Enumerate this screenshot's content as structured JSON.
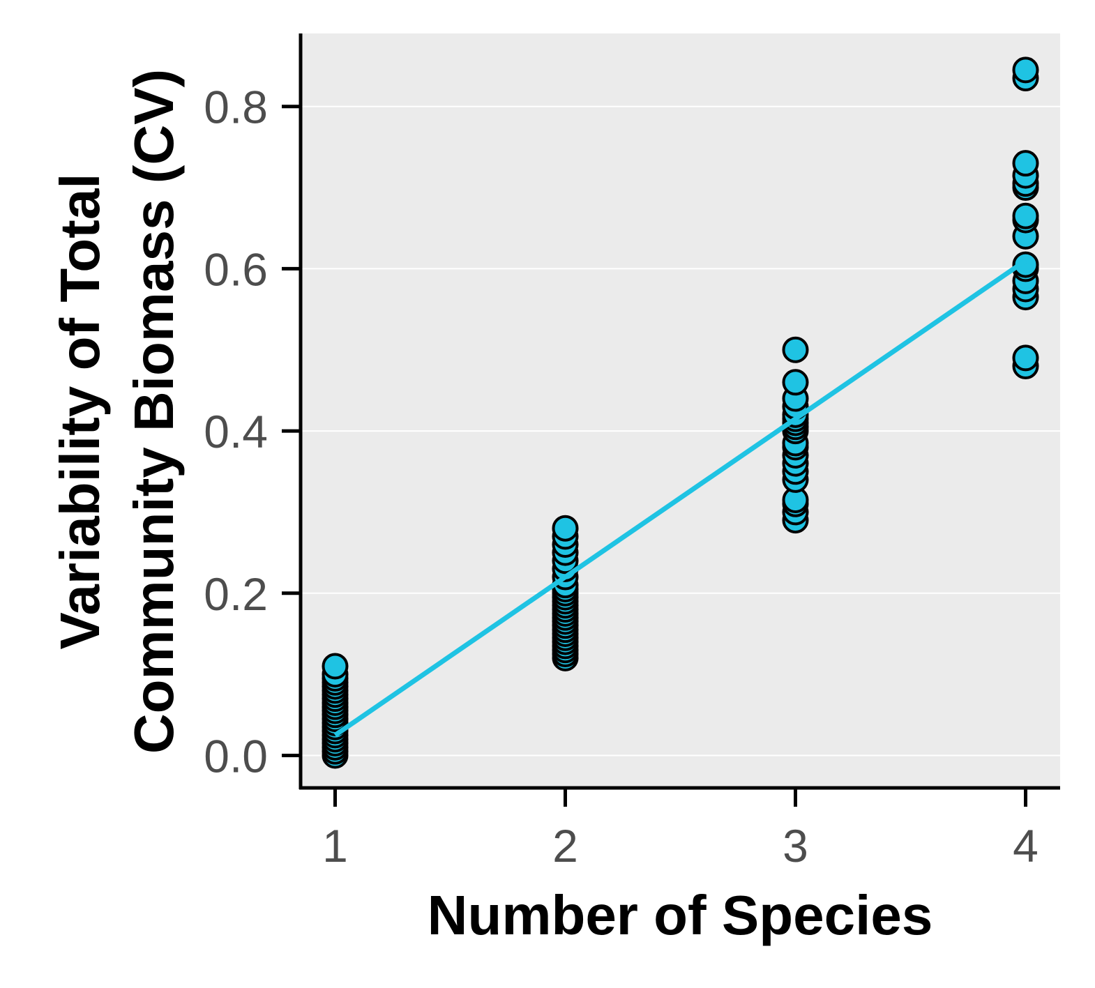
{
  "chart_data": {
    "type": "scatter",
    "xlabel": "Number of Species",
    "ylabel_lines": [
      "Variability of Total",
      "Community Biomass (CV)"
    ],
    "x_ticks": [
      1,
      2,
      3,
      4
    ],
    "y_ticks": [
      0.0,
      0.2,
      0.4,
      0.6,
      0.8
    ],
    "y_tick_labels": [
      "0.0",
      "0.2",
      "0.4",
      "0.6",
      "0.8"
    ],
    "xlim": [
      0.85,
      4.15
    ],
    "ylim": [
      -0.04,
      0.89
    ],
    "grid": "horizontal",
    "series": [
      {
        "points": [
          [
            1,
            0.0
          ],
          [
            1,
            0.005
          ],
          [
            1,
            0.01
          ],
          [
            1,
            0.015
          ],
          [
            1,
            0.02
          ],
          [
            1,
            0.025
          ],
          [
            1,
            0.03
          ],
          [
            1,
            0.035
          ],
          [
            1,
            0.04
          ],
          [
            1,
            0.045
          ],
          [
            1,
            0.05
          ],
          [
            1,
            0.055
          ],
          [
            1,
            0.06
          ],
          [
            1,
            0.065
          ],
          [
            1,
            0.07
          ],
          [
            1,
            0.075
          ],
          [
            1,
            0.08
          ],
          [
            1,
            0.085
          ],
          [
            1,
            0.09
          ],
          [
            1,
            0.095
          ],
          [
            1,
            0.1
          ],
          [
            1,
            0.11
          ],
          [
            2,
            0.12
          ],
          [
            2,
            0.125
          ],
          [
            2,
            0.13
          ],
          [
            2,
            0.135
          ],
          [
            2,
            0.14
          ],
          [
            2,
            0.145
          ],
          [
            2,
            0.15
          ],
          [
            2,
            0.155
          ],
          [
            2,
            0.16
          ],
          [
            2,
            0.165
          ],
          [
            2,
            0.17
          ],
          [
            2,
            0.175
          ],
          [
            2,
            0.18
          ],
          [
            2,
            0.185
          ],
          [
            2,
            0.19
          ],
          [
            2,
            0.195
          ],
          [
            2,
            0.2
          ],
          [
            2,
            0.205
          ],
          [
            2,
            0.21
          ],
          [
            2,
            0.22
          ],
          [
            2,
            0.23
          ],
          [
            2,
            0.24
          ],
          [
            2,
            0.25
          ],
          [
            2,
            0.26
          ],
          [
            2,
            0.27
          ],
          [
            2,
            0.28
          ],
          [
            3,
            0.29
          ],
          [
            3,
            0.3
          ],
          [
            3,
            0.31
          ],
          [
            3,
            0.315
          ],
          [
            3,
            0.34
          ],
          [
            3,
            0.35
          ],
          [
            3,
            0.36
          ],
          [
            3,
            0.37
          ],
          [
            3,
            0.38
          ],
          [
            3,
            0.385
          ],
          [
            3,
            0.4
          ],
          [
            3,
            0.405
          ],
          [
            3,
            0.41
          ],
          [
            3,
            0.415
          ],
          [
            3,
            0.42
          ],
          [
            3,
            0.43
          ],
          [
            3,
            0.44
          ],
          [
            3,
            0.46
          ],
          [
            3,
            0.5
          ],
          [
            4,
            0.48
          ],
          [
            4,
            0.49
          ],
          [
            4,
            0.565
          ],
          [
            4,
            0.575
          ],
          [
            4,
            0.585
          ],
          [
            4,
            0.6
          ],
          [
            4,
            0.605
          ],
          [
            4,
            0.64
          ],
          [
            4,
            0.66
          ],
          [
            4,
            0.665
          ],
          [
            4,
            0.7
          ],
          [
            4,
            0.705
          ],
          [
            4,
            0.715
          ],
          [
            4,
            0.73
          ],
          [
            4,
            0.835
          ],
          [
            4,
            0.845
          ]
        ]
      }
    ],
    "trend_line": {
      "x": [
        1,
        4
      ],
      "y": [
        0.025,
        0.61
      ]
    },
    "colors": {
      "point_fill": "#1fc3e3",
      "point_stroke": "#000000",
      "line": "#1fc3e3",
      "panel": "#ebebeb",
      "grid": "#ffffff"
    }
  }
}
